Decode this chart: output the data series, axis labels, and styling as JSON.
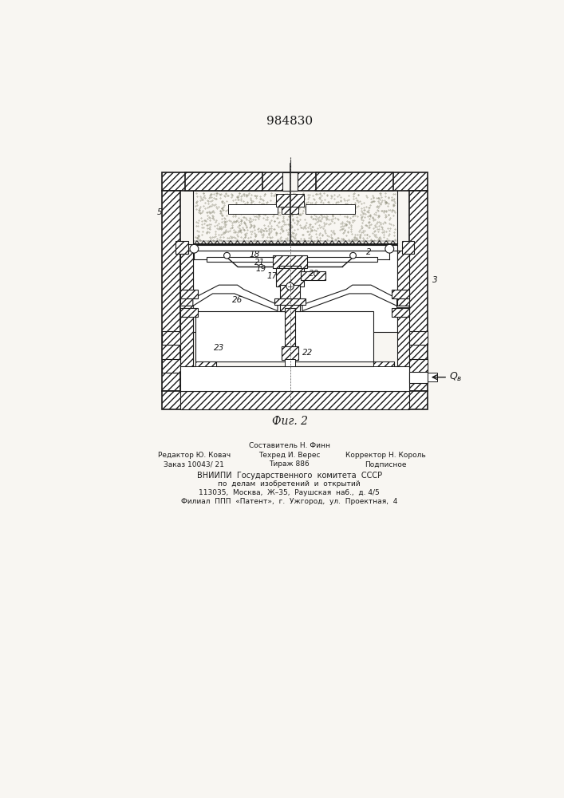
{
  "title": "984830",
  "fig_label": "Фиг. 2",
  "bg_color": "#f8f6f2",
  "line_color": "#1a1a1a",
  "footer_line0": "Составитель Н. Финн",
  "footer_line1_l": "Редактор Ю. Ковач",
  "footer_line1_c": "Техред И. Верес",
  "footer_line1_r": "Корректор Н. Король",
  "footer_line2_l": "Заказ 10043/ 21",
  "footer_line2_c": "Тираж 886",
  "footer_line2_r": "Подписное",
  "footer_line3": "ВНИИПИ  Государственного  комитета  СССР",
  "footer_line4": "по  делам  изобретений  и  открытий",
  "footer_line5": "113035,  Москва,  Ж–35,  Раушская  наб.,  д. 4/5",
  "footer_line6": "Филиал  ППП  «Патент»,  г.  Ужгород,  ул.  Проектная,  4"
}
